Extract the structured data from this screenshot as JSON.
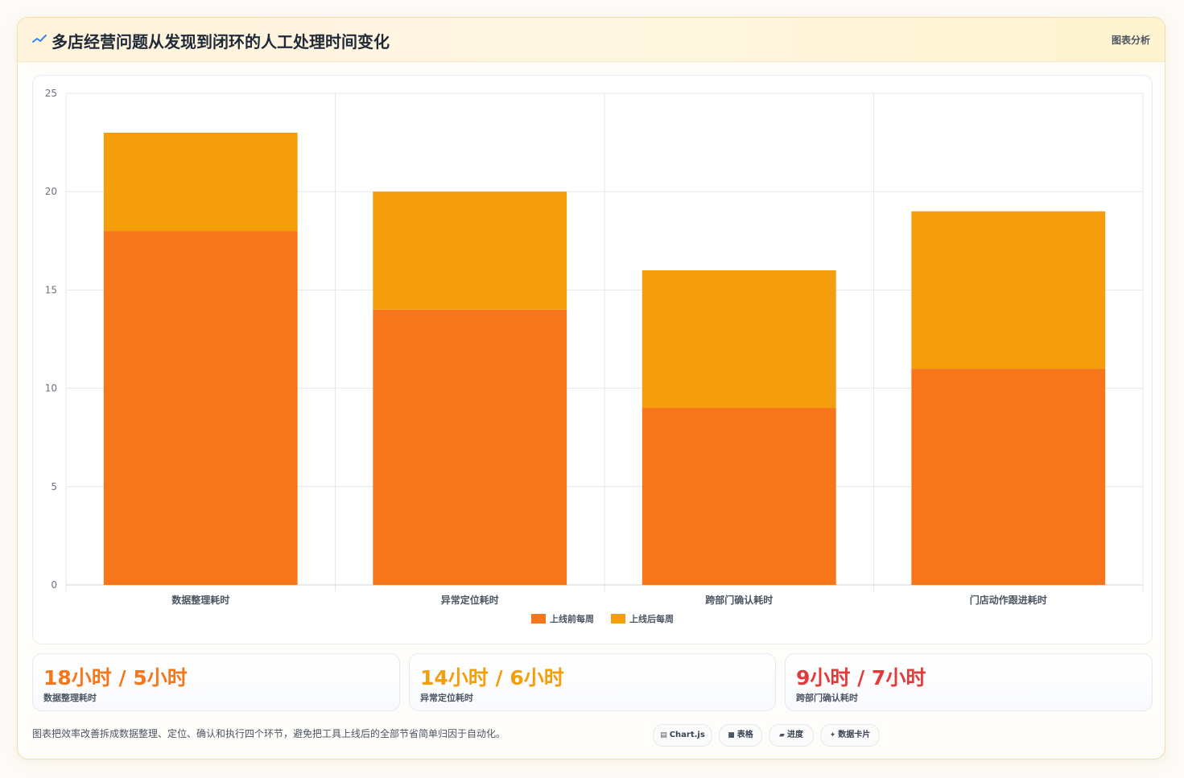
{
  "header": {
    "title": "多店经营问题从发现到闭环的人工处理时间变化",
    "tag": "图表分析",
    "logo_icon": "chart-line-icon"
  },
  "chart_data": {
    "type": "bar",
    "stacked": true,
    "categories": [
      "数据整理耗时",
      "异常定位耗时",
      "跨部门确认耗时",
      "门店动作跟进耗时"
    ],
    "series": [
      {
        "name": "上线前每周",
        "values": [
          18,
          14,
          9,
          11
        ],
        "color": "#f7761c"
      },
      {
        "name": "上线后每周",
        "values": [
          5,
          6,
          7,
          8
        ],
        "color": "#f59e0b"
      }
    ],
    "ylim": [
      0,
      25
    ],
    "yticks": [
      0,
      5,
      10,
      15,
      20,
      25
    ],
    "grid": true,
    "legend_position": "bottom"
  },
  "stats": [
    {
      "value": "18小时 / 5小时",
      "label": "数据整理耗时",
      "color": "#f7761c"
    },
    {
      "value": "14小时 / 6小时",
      "label": "异常定位耗时",
      "color": "#f59e0b"
    },
    {
      "value": "9小时 / 7小时",
      "label": "跨部门确认耗时",
      "color": "#e23b3b"
    }
  ],
  "footer": {
    "note": "图表把效率改善拆成数据整理、定位、确认和执行四个环节，避免把工具上线后的全部节省简单归因于自动化。",
    "chips": [
      {
        "label": "Chart.js",
        "icon": "chart-icon",
        "glyph": "▤"
      },
      {
        "label": "表格",
        "icon": "table-icon",
        "glyph": "■"
      },
      {
        "label": "进度",
        "icon": "progress-icon",
        "glyph": "▰"
      },
      {
        "label": "数据卡片",
        "icon": "sparkle-icon",
        "glyph": "✦"
      }
    ]
  }
}
